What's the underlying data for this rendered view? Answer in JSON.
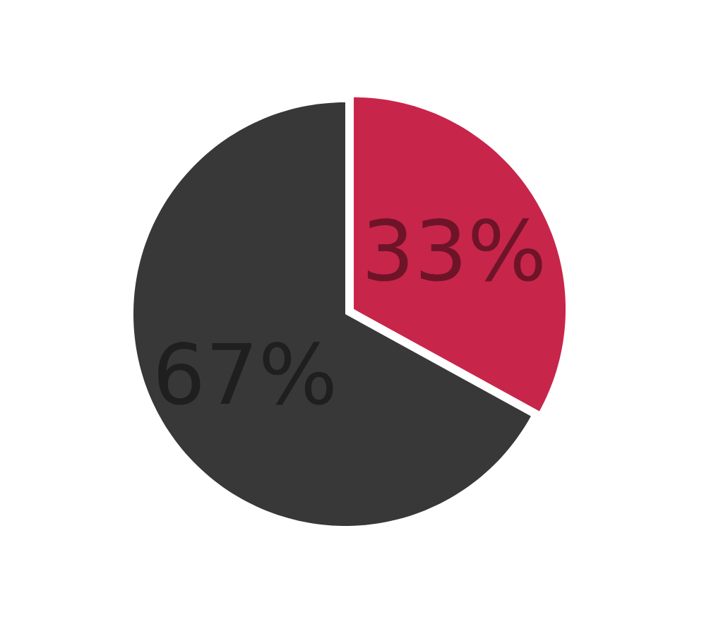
{
  "chart_data": {
    "type": "pie",
    "categories": [
      null,
      null
    ],
    "values": [
      33,
      67
    ],
    "colors": [
      "#c8254a",
      "#383838"
    ],
    "value_labels": [
      "33%",
      "67%"
    ]
  }
}
